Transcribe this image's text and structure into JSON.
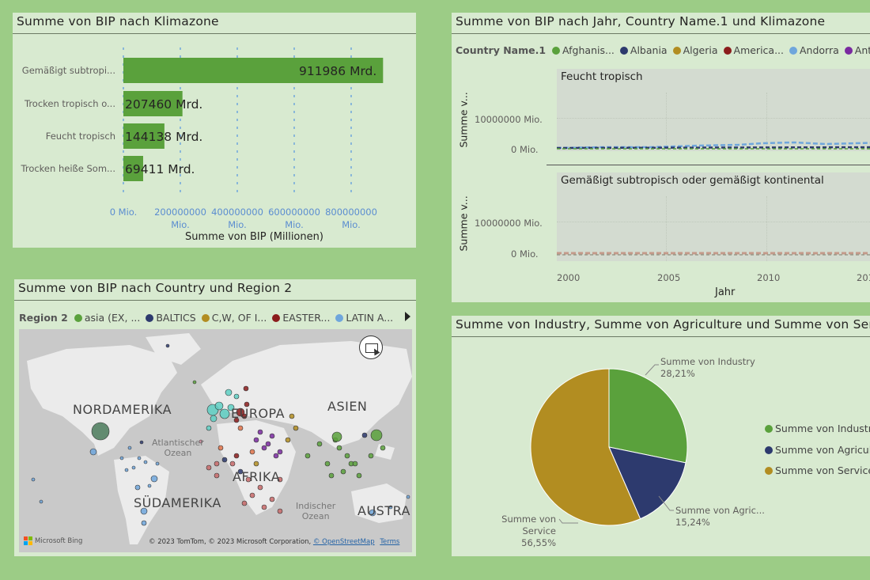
{
  "panel1": {
    "title": "Summe von BIP nach Klimazone",
    "xlabel": "Summe von BIP (Millionen)",
    "ticks": [
      {
        "v": "0 Mio.",
        "u": ""
      },
      {
        "v": "200000000",
        "u": "Mio."
      },
      {
        "v": "400000000",
        "u": "Mio."
      },
      {
        "v": "600000000",
        "u": "Mio."
      },
      {
        "v": "800000000",
        "u": "Mio."
      }
    ]
  },
  "chart_data": [
    {
      "type": "bar",
      "orientation": "horizontal",
      "title": "Summe von BIP nach Klimazone",
      "xlabel": "Summe von BIP (Millionen)",
      "categories": [
        "Gemäßigt subtropi...",
        "Trocken tropisch o...",
        "Feucht tropisch",
        "Trocken heiße Som..."
      ],
      "values": [
        911986,
        207460,
        144138,
        69411
      ],
      "value_labels": [
        "911986 Mrd.",
        "207460 Mrd.",
        "144138 Mrd.",
        "69411 Mrd."
      ],
      "xlim": [
        0,
        1000000
      ],
      "color": "#5aa13c"
    },
    {
      "type": "pie",
      "title": "Summe von Industry, Summe von Agriculture und Summe von Servi",
      "series": [
        {
          "name": "Summe von Industry",
          "label": "Summe von Industry",
          "value": 28.21,
          "pct": "28,21%",
          "color": "#5aa13c"
        },
        {
          "name": "Summe von Agriculture",
          "label": "Summe von Agric...",
          "value": 15.24,
          "pct": "15,24%",
          "color": "#2d3a6e"
        },
        {
          "name": "Summe von Service",
          "label": "Summe von Service",
          "value": 56.55,
          "pct": "56,55%",
          "color": "#b28d21"
        }
      ]
    },
    {
      "type": "line",
      "title": "Summe von BIP nach Jahr, Country Name.1 und Klimazone",
      "xlabel": "Jahr",
      "ylabel": "Summe v...",
      "panels": [
        "Feucht tropisch",
        "Gemäßigt subtropisch oder gemäßigt kontinental"
      ],
      "x_ticks": [
        "2000",
        "2005",
        "2010",
        "201"
      ],
      "y_ticks": [
        "10000000 Mio.",
        "0 Mio."
      ]
    }
  ],
  "panel2": {
    "title": "Summe von BIP nach Jahr, Country Name.1 und Klimazone",
    "legend_label": "Country Name.1",
    "legend": [
      {
        "name": "Afghanis...",
        "color": "#5aa13c"
      },
      {
        "name": "Albania",
        "color": "#2d3a6e"
      },
      {
        "name": "Algeria",
        "color": "#b28d21"
      },
      {
        "name": "America...",
        "color": "#8b1c1c"
      },
      {
        "name": "Andorra",
        "color": "#6fa6dc"
      },
      {
        "name": "Antigu",
        "color": "#7a2aa0"
      }
    ],
    "facet1": "Feucht tropisch",
    "facet2": "Gemäßigt subtropisch oder gemäßigt kontinental",
    "ylabel": "Summe v...",
    "ytick_hi": "10000000 Mio.",
    "ytick_lo": "0 Mio.",
    "xticks": [
      "2000",
      "2005",
      "2010",
      "201"
    ],
    "xlabel": "Jahr"
  },
  "panel3": {
    "title": "Summe von BIP nach Country und Region 2",
    "legend_label": "Region 2",
    "legend": [
      {
        "name": "asia (EX, ...",
        "color": "#5aa13c"
      },
      {
        "name": "BALTICS",
        "color": "#2d3a6e"
      },
      {
        "name": "C,W, OF I...",
        "color": "#b28d21"
      },
      {
        "name": "EASTER...",
        "color": "#8b1c1c"
      },
      {
        "name": "LATIN A...",
        "color": "#6fa6dc"
      }
    ],
    "labels": {
      "nordamerika": "NORDAMERIKA",
      "europa": "EUROPA",
      "asien": "ASIEN",
      "afrika": "AFRIKA",
      "sudamerika": "SÜDAMERIKA",
      "austra": "AUSTRA",
      "atlantischer": "Atlantischer",
      "ozean1": "Ozean",
      "indischer": "Indischer",
      "ozean2": "Ozean"
    },
    "bing": "Microsoft Bing",
    "copyright": "© 2023 TomTom, © 2023 Microsoft Corporation,",
    "osm": "© OpenStreetMap",
    "terms": "Terms"
  },
  "panel4": {
    "title": "Summe von Industry, Summe von Agriculture und Summe von Servi",
    "legend": [
      {
        "name": "Summe von Industry",
        "color": "#5aa13c"
      },
      {
        "name": "Summe von Agricult",
        "color": "#2d3a6e"
      },
      {
        "name": "Summe von Service",
        "color": "#b28d21"
      }
    ],
    "callouts": {
      "industry_name": "Summe von Industry",
      "industry_pct": "28,21%",
      "agric_name": "Summe von Agric...",
      "agric_pct": "15,24%",
      "service_name": "Summe von Service",
      "service_pct": "56,55%"
    }
  }
}
